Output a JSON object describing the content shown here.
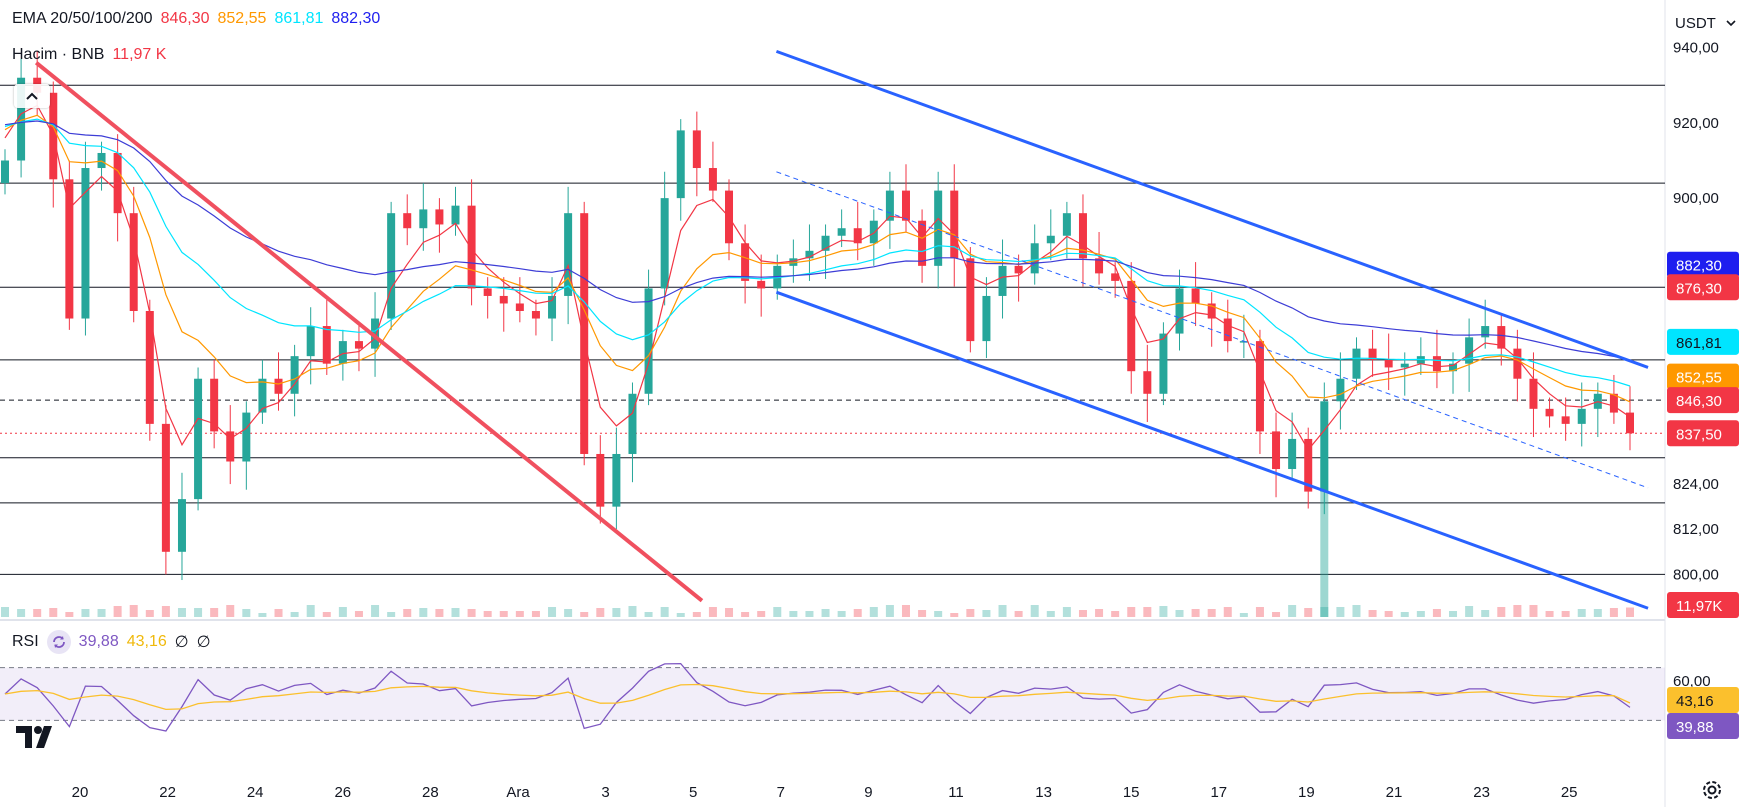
{
  "currency": {
    "value": "USDT"
  },
  "legend_ema": {
    "label": "EMA 20/50/100/200",
    "v20": "846,30",
    "v50": "852,55",
    "v100": "861,81",
    "v200": "882,30"
  },
  "legend_vol": {
    "label": "Hacim · BNB",
    "value": "11,97 K"
  },
  "legend_rsi": {
    "label": "RSI",
    "rsi": "39,88",
    "ma": "43,16",
    "e1": "∅",
    "e2": "∅"
  },
  "colors": {
    "up": "#26a69a",
    "down": "#f23645",
    "ema20": "#f23645",
    "ema50": "#ff9800",
    "ema100": "#00e5ff",
    "ema200": "#3d3dd6",
    "channel": "#2962ff",
    "trend": "#f0505f",
    "rsi": "#7e57c2",
    "rsi_ma": "#fbc02d"
  },
  "icons": {
    "logo": "tradingview-logo-icon",
    "settings": "gear-icon",
    "chevron": "chevron-down-icon",
    "collapse": "chevron-up-icon",
    "cycle": "cycle-icon"
  },
  "chart_data": {
    "type": "candlestick",
    "x_ticks": [
      "20",
      "22",
      "24",
      "26",
      "28",
      "Ara",
      "3",
      "5",
      "7",
      "9",
      "11",
      "13",
      "15",
      "17",
      "19",
      "21",
      "23",
      "25"
    ],
    "x_range": [
      0,
      36
    ],
    "price_range": [
      790,
      950
    ],
    "price_ticks": [
      "940,00",
      "920,00",
      "900,00",
      "824,00",
      "812,00",
      "800,00"
    ],
    "price_tick_values": [
      940,
      920,
      900,
      824,
      812,
      800
    ],
    "price_labels": [
      {
        "text": "882,30",
        "value": 882.3,
        "color": "#1e1eef"
      },
      {
        "text": "876,30",
        "value": 876.3,
        "color": "#f23645"
      },
      {
        "text": "861,81",
        "value": 861.81,
        "color": "#00e5ff",
        "dark_text": true
      },
      {
        "text": "852,55",
        "value": 852.55,
        "color": "#ff9800"
      },
      {
        "text": "846,30",
        "value": 846.3,
        "color": "#f23645"
      },
      {
        "text": "837,50",
        "value": 837.5,
        "color": "#f23645"
      }
    ],
    "volume_label": {
      "text": "11,97K",
      "color": "#f23645"
    },
    "horizontal_levels": [
      930,
      904,
      876.3,
      857,
      831,
      819,
      800
    ],
    "dashed_level": 846.3,
    "last_price": 837.5,
    "trend_line": [
      [
        0,
        936
      ],
      [
        15.2,
        793
      ]
    ],
    "channel_upper": [
      [
        16.9,
        939
      ],
      [
        36.8,
        855
      ]
    ],
    "channel_lower": [
      [
        16.9,
        875
      ],
      [
        36.8,
        791
      ]
    ],
    "channel_mid": [
      [
        16.9,
        907
      ],
      [
        36.8,
        823
      ]
    ],
    "closes": [
      910,
      932,
      928,
      905,
      868,
      908,
      912,
      896,
      870,
      840,
      806,
      820,
      852,
      838,
      830,
      843,
      852,
      848,
      858,
      866,
      856,
      862,
      860,
      868,
      896,
      892,
      897,
      893,
      898,
      876,
      874,
      872,
      870,
      868,
      874,
      896,
      832,
      818,
      832,
      848,
      876,
      900,
      918,
      908,
      902,
      888,
      878,
      876,
      882,
      884,
      886,
      890,
      892,
      888,
      894,
      902,
      894,
      882,
      902,
      884,
      862,
      874,
      882,
      880,
      888,
      890,
      896,
      884,
      880,
      878,
      854,
      848,
      864,
      876,
      872,
      868,
      862,
      862,
      838,
      828,
      836,
      822,
      846,
      852,
      860,
      857,
      855,
      856,
      858,
      854,
      856,
      863,
      866,
      860,
      852,
      844,
      842,
      840,
      844,
      848,
      843,
      837.5
    ],
    "ema20_range": "846,30",
    "rsi": {
      "range": [
        0,
        100
      ],
      "ticks": [
        "60,00"
      ],
      "tick_values": [
        60
      ],
      "band": [
        30,
        70
      ],
      "value": 39.88,
      "ma": 43.16
    },
    "rsi_labels": [
      {
        "text": "43,16",
        "value": 43.16,
        "color": "#fbc02d",
        "dark_text": true
      },
      {
        "text": "39,88",
        "value": 39.88,
        "color": "#7e57c2"
      }
    ]
  }
}
